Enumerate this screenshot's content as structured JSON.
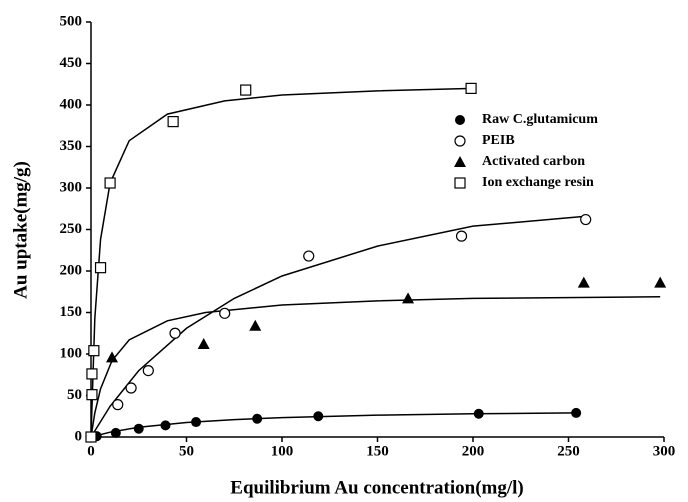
{
  "chart_data": {
    "type": "scatter",
    "x_label": "Equilibrium Au concentration(mg/l)",
    "y_label": "Au uptake(mg/g)",
    "xlim": [
      0,
      300
    ],
    "xticks": [
      0,
      50,
      100,
      150,
      200,
      250,
      300
    ],
    "ylim": [
      0,
      500
    ],
    "yticks": [
      0,
      50,
      100,
      150,
      200,
      250,
      300,
      350,
      400,
      450,
      500
    ],
    "series": [
      {
        "name": "Raw C.glutamicum",
        "color": "#000000",
        "marker": "circle-filled",
        "x": [
          0,
          3,
          13,
          25,
          39,
          55,
          87,
          119,
          203,
          254
        ],
        "values": [
          0,
          1,
          5,
          10,
          14,
          18,
          22,
          25,
          28,
          29
        ],
        "fit_x": [
          0,
          10,
          25,
          50,
          75,
          100,
          150,
          200,
          254
        ],
        "fit_y": [
          0,
          5.8,
          11.7,
          17.5,
          21,
          23.3,
          26.3,
          28,
          29
        ]
      },
      {
        "name": "PEIB",
        "color": "#000000",
        "marker": "circle-open",
        "x": [
          0,
          14,
          21,
          30,
          44,
          70,
          114,
          194,
          259
        ],
        "values": [
          0,
          39,
          59,
          80,
          125,
          149,
          218,
          242,
          262
        ],
        "fit_x": [
          0,
          10,
          25,
          50,
          75,
          100,
          150,
          200,
          259
        ],
        "fit_y": [
          0,
          37,
          80,
          131,
          167,
          194,
          230,
          254,
          266
        ]
      },
      {
        "name": "Activated carbon",
        "color": "#000000",
        "marker": "triangle",
        "x": [
          11,
          59,
          86,
          166,
          258,
          298
        ],
        "values": [
          96,
          112,
          134,
          167,
          186,
          186
        ],
        "fit_x": [
          0,
          2,
          5,
          11,
          20,
          40,
          60,
          100,
          150,
          200,
          298
        ],
        "fit_y": [
          0,
          29,
          58,
          92,
          117,
          140,
          150,
          159,
          164,
          167,
          169
        ]
      },
      {
        "name": "Ion exchange resin",
        "color": "#000000",
        "marker": "square-open",
        "x": [
          0,
          0.5,
          0.5,
          1.5,
          5,
          10,
          43,
          81,
          199
        ],
        "values": [
          0,
          51,
          76,
          104,
          204,
          306,
          380,
          418,
          420
        ],
        "fit_x": [
          0,
          2,
          5,
          10,
          20,
          40,
          70,
          100,
          150,
          200
        ],
        "fit_y": [
          0,
          143,
          238,
          306,
          357,
          389,
          405,
          412,
          417,
          420
        ]
      }
    ]
  }
}
